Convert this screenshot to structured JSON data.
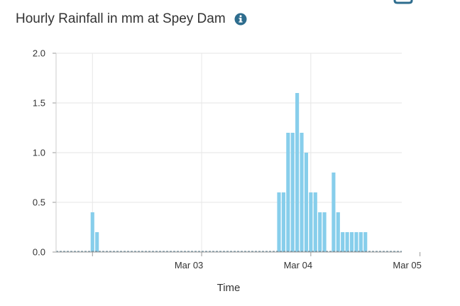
{
  "header": {
    "title": "Hourly Rainfall in mm at Spey Dam",
    "info_icon": "info-circle-icon"
  },
  "colors": {
    "bar": "#87ceeb",
    "info_icon": "#2e6d8e",
    "grid": "#e6e6e6",
    "axis": "#999999"
  },
  "chart_data": {
    "type": "bar",
    "title": "Hourly Rainfall in mm at Spey Dam",
    "xlabel": "Time",
    "ylabel": "",
    "unit": "mm",
    "x_axis": {
      "type": "time",
      "range_hours": [
        -8,
        68
      ],
      "ticks": [
        {
          "hour": 0,
          "label": ""
        },
        {
          "hour": 24,
          "label": "Mar 03"
        },
        {
          "hour": 48,
          "label": "Mar 04"
        },
        {
          "hour": 72,
          "label": "Mar 05"
        }
      ]
    },
    "ylim": [
      0,
      2
    ],
    "yticks": [
      {
        "value": 0,
        "label": "0.0"
      },
      {
        "value": 0.5,
        "label": "0.5"
      },
      {
        "value": 1,
        "label": "1.0"
      },
      {
        "value": 1.5,
        "label": "1.5"
      },
      {
        "value": 2,
        "label": "2.0"
      }
    ],
    "grid": true,
    "series": [
      {
        "name": "Hourly Rainfall",
        "points": [
          {
            "hour": 0,
            "value": 0.4
          },
          {
            "hour": 1,
            "value": 0.2
          },
          {
            "hour": 41,
            "value": 0.6
          },
          {
            "hour": 42,
            "value": 0.6
          },
          {
            "hour": 43,
            "value": 1.2
          },
          {
            "hour": 44,
            "value": 1.2
          },
          {
            "hour": 45,
            "value": 1.6
          },
          {
            "hour": 46,
            "value": 1.2
          },
          {
            "hour": 47,
            "value": 1.0
          },
          {
            "hour": 48,
            "value": 0.6
          },
          {
            "hour": 49,
            "value": 0.6
          },
          {
            "hour": 50,
            "value": 0.4
          },
          {
            "hour": 51,
            "value": 0.4
          },
          {
            "hour": 53,
            "value": 0.8
          },
          {
            "hour": 54,
            "value": 0.4
          },
          {
            "hour": 55,
            "value": 0.2
          },
          {
            "hour": 56,
            "value": 0.2
          },
          {
            "hour": 57,
            "value": 0.2
          },
          {
            "hour": 58,
            "value": 0.2
          },
          {
            "hour": 59,
            "value": 0.2
          },
          {
            "hour": 60,
            "value": 0.2
          }
        ]
      }
    ]
  }
}
